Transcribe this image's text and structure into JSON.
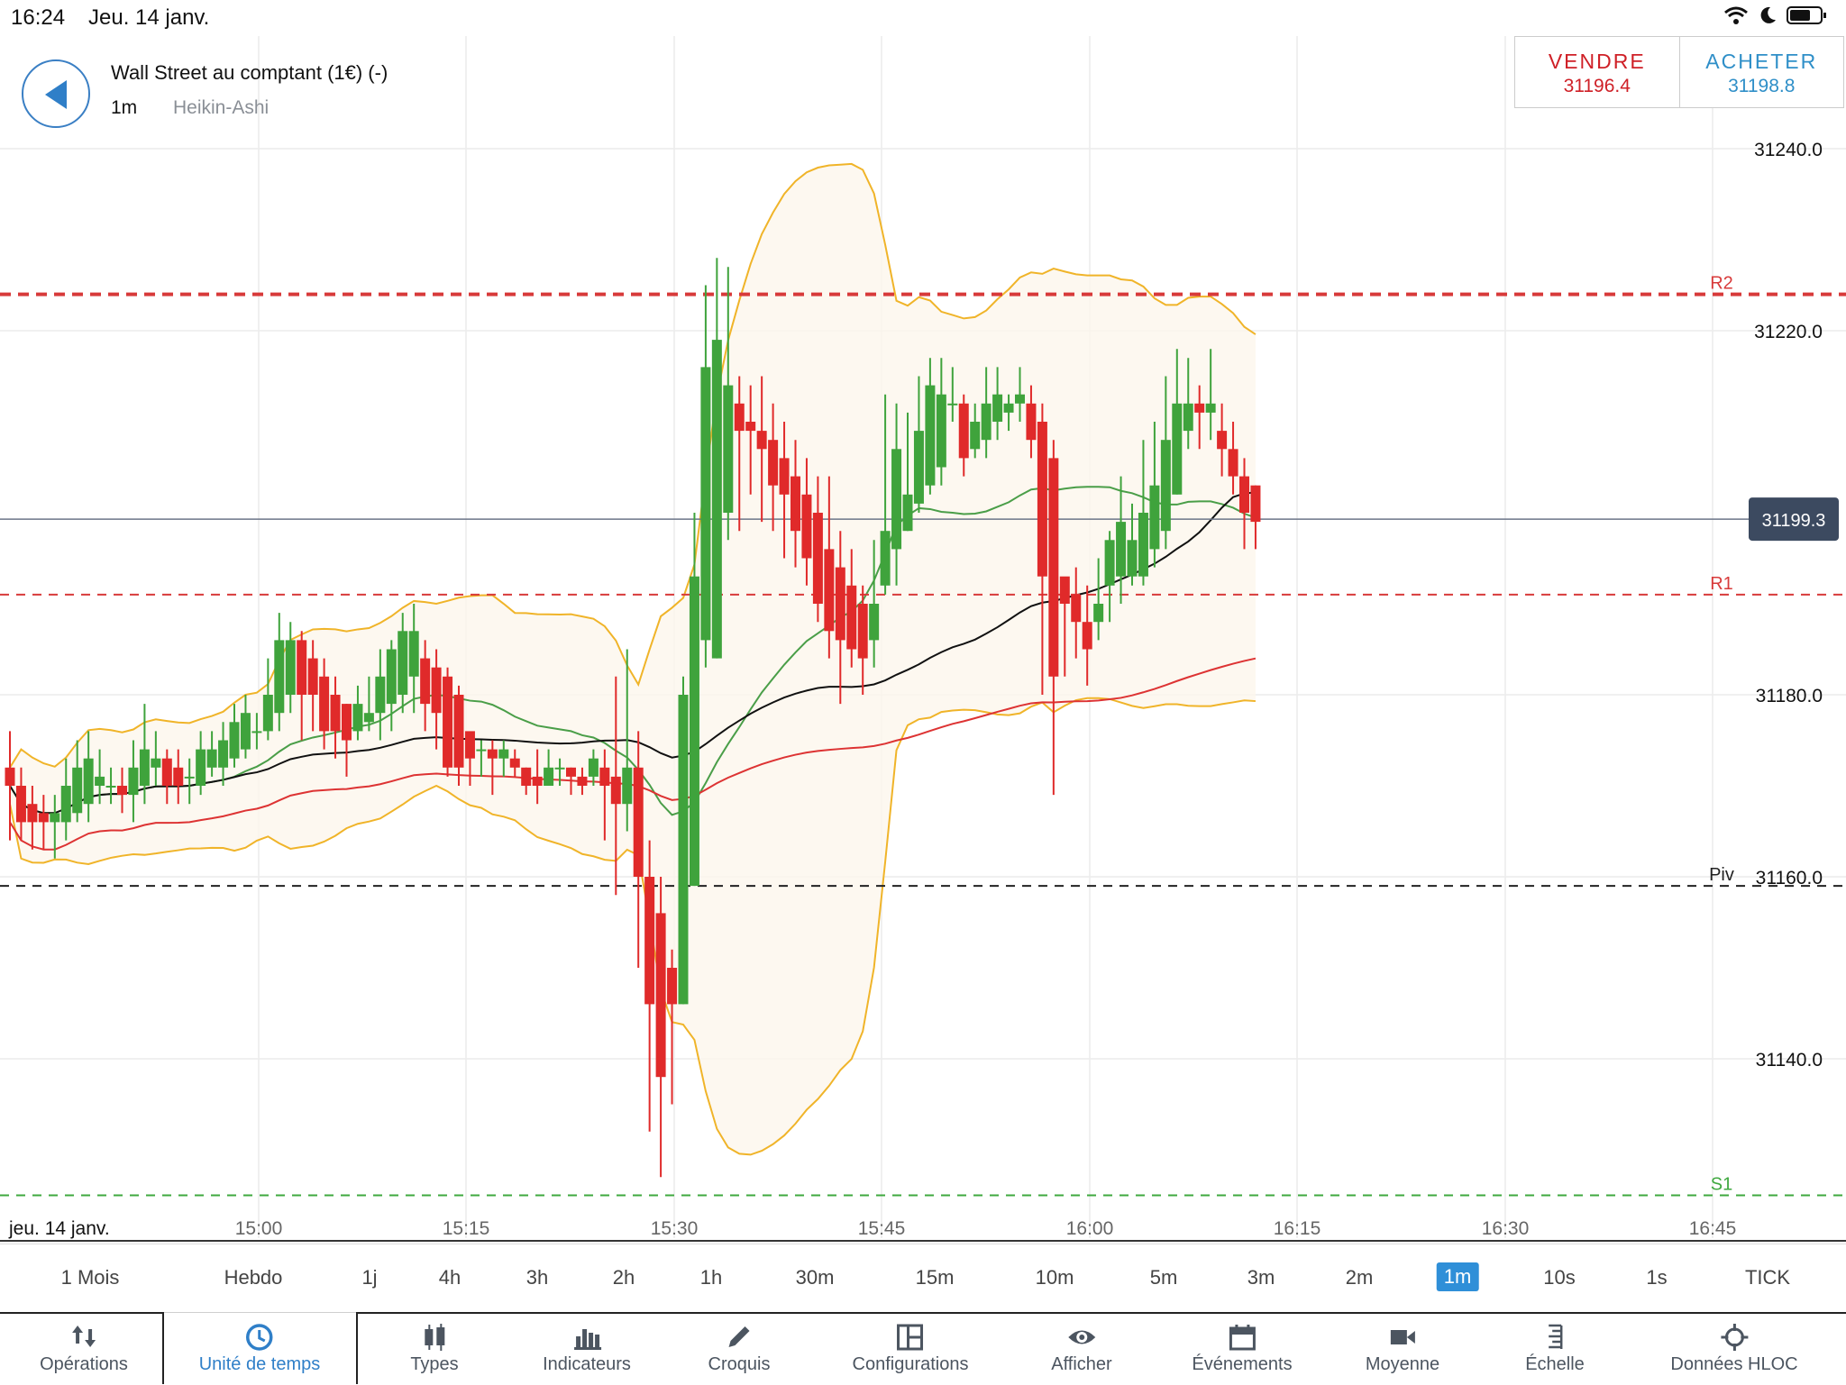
{
  "status_bar": {
    "time": "16:24",
    "date": "Jeu. 14 janv."
  },
  "instrument": {
    "name": "Wall Street au comptant (1€) (-)",
    "timeframe": "1m",
    "chart_type": "Heikin-Ashi"
  },
  "trade": {
    "sell_label": "VENDRE",
    "sell_price": "31196.4",
    "buy_label": "ACHETER",
    "buy_price": "31198.8"
  },
  "colors": {
    "up": "#3fa33c",
    "down": "#e02a2a",
    "bollinger": "#f0b429",
    "r_level": "#d83a3a",
    "s_level": "#3fa83f",
    "price_tag": "#3c4a60"
  },
  "chart_data": {
    "type": "candlestick",
    "style": "Heikin-Ashi",
    "date_label": "jeu. 14 janv.",
    "y_ticks": [
      "31240.0",
      "31220.0",
      "31180.0",
      "31160.0",
      "31140.0"
    ],
    "x_ticks": [
      "15:00",
      "15:15",
      "15:30",
      "15:45",
      "16:00",
      "16:15",
      "16:30",
      "16:45"
    ],
    "levels": [
      {
        "name": "R2",
        "value": 31224
      },
      {
        "name": "R1",
        "value": 31191
      },
      {
        "name": "Piv",
        "value": 31159
      },
      {
        "name": "S1",
        "value": 31125
      }
    ],
    "current_price": "31199.3",
    "candles": [
      [
        31172,
        31170,
        31176,
        31164
      ],
      [
        31170,
        31166,
        31172,
        31164
      ],
      [
        31168,
        31166,
        31170,
        31163
      ],
      [
        31167,
        31166,
        31169,
        31163
      ],
      [
        31166,
        31167,
        31169,
        31162
      ],
      [
        31166,
        31170,
        31173,
        31164
      ],
      [
        31167,
        31172,
        31175,
        31166
      ],
      [
        31168,
        31173,
        31176,
        31166
      ],
      [
        31170,
        31171,
        31174,
        31168
      ],
      [
        31170,
        31170,
        31172,
        31168
      ],
      [
        31170,
        31169,
        31172,
        31167
      ],
      [
        31169,
        31172,
        31175,
        31166
      ],
      [
        31170,
        31174,
        31179,
        31168
      ],
      [
        31172,
        31173,
        31176,
        31170
      ],
      [
        31173,
        31170,
        31174,
        31168
      ],
      [
        31172,
        31170,
        31174,
        31168
      ],
      [
        31171,
        31171,
        31173,
        31168
      ],
      [
        31170,
        31174,
        31176,
        31169
      ],
      [
        31172,
        31174,
        31176,
        31171
      ],
      [
        31172,
        31175,
        31177,
        31170
      ],
      [
        31173,
        31177,
        31179,
        31172
      ],
      [
        31174,
        31178,
        31180,
        31173
      ],
      [
        31176,
        31176,
        31178,
        31174
      ],
      [
        31176,
        31180,
        31184,
        31175
      ],
      [
        31178,
        31186,
        31189,
        31176
      ],
      [
        31180,
        31186,
        31188,
        31178
      ],
      [
        31186,
        31180,
        31187,
        31175
      ],
      [
        31184,
        31180,
        31186,
        31176
      ],
      [
        31182,
        31176,
        31184,
        31174
      ],
      [
        31180,
        31176,
        31182,
        31173
      ],
      [
        31179,
        31175,
        31179,
        31171
      ],
      [
        31176,
        31179,
        31181,
        31175
      ],
      [
        31177,
        31178,
        31182,
        31176
      ],
      [
        31178,
        31182,
        31185,
        31175
      ],
      [
        31179,
        31185,
        31186,
        31176
      ],
      [
        31180,
        31187,
        31189,
        31178
      ],
      [
        31182,
        31187,
        31190,
        31178
      ],
      [
        31184,
        31179,
        31186,
        31176
      ],
      [
        31183,
        31178,
        31185,
        31174
      ],
      [
        31182,
        31172,
        31183,
        31171
      ],
      [
        31180,
        31172,
        31181,
        31170
      ],
      [
        31176,
        31173,
        31174,
        31170
      ],
      [
        31174,
        31174,
        31175,
        31171
      ],
      [
        31174,
        31173,
        31175,
        31169
      ],
      [
        31173,
        31174,
        31175,
        31171
      ],
      [
        31173,
        31172,
        31174,
        31171
      ],
      [
        31172,
        31170,
        31172,
        31169
      ],
      [
        31171,
        31170,
        31174,
        31168
      ],
      [
        31170,
        31172,
        31174,
        31170
      ],
      [
        31172,
        31172,
        31173,
        31170
      ],
      [
        31172,
        31171,
        31172,
        31169
      ],
      [
        31171,
        31170,
        31172,
        31169
      ],
      [
        31171,
        31173,
        31174,
        31170
      ],
      [
        31172,
        31170,
        31174,
        31164
      ],
      [
        31171,
        31168,
        31182,
        31158
      ],
      [
        31168,
        31172,
        31185,
        31165
      ],
      [
        31172,
        31160,
        31176,
        31150
      ],
      [
        31160,
        31146,
        31164,
        31132
      ],
      [
        31156,
        31138,
        31160,
        31127
      ],
      [
        31150,
        31146,
        31152,
        31135
      ],
      [
        31146,
        31180,
        31182,
        31146
      ],
      [
        31159,
        31193,
        31200,
        31159
      ],
      [
        31186,
        31216,
        31225,
        31183
      ],
      [
        31184,
        31219,
        31228,
        31184
      ],
      [
        31200,
        31214,
        31227,
        31197
      ],
      [
        31212,
        31209,
        31215,
        31198
      ],
      [
        31210,
        31209,
        31214,
        31202
      ],
      [
        31209,
        31207,
        31215,
        31199
      ],
      [
        31208,
        31203,
        31212,
        31198
      ],
      [
        31206,
        31202,
        31210,
        31195
      ],
      [
        31204,
        31198,
        31208,
        31194
      ],
      [
        31202,
        31195,
        31206,
        31192
      ],
      [
        31200,
        31190,
        31204,
        31188
      ],
      [
        31196,
        31187,
        31204,
        31184
      ],
      [
        31194,
        31186,
        31198,
        31179
      ],
      [
        31192,
        31185,
        31196,
        31183
      ],
      [
        31190,
        31184,
        31192,
        31180
      ],
      [
        31186,
        31190,
        31197,
        31183
      ],
      [
        31192,
        31198,
        31213,
        31191
      ],
      [
        31196,
        31207,
        31212,
        31192
      ],
      [
        31198,
        31202,
        31211,
        31198
      ],
      [
        31201,
        31209,
        31215,
        31200
      ],
      [
        31203,
        31214,
        31217,
        31202
      ],
      [
        31205,
        31213,
        31217,
        31203
      ],
      [
        31212,
        31212,
        31216,
        31210
      ],
      [
        31212,
        31206,
        31213,
        31204
      ],
      [
        31207,
        31210,
        31212,
        31206
      ],
      [
        31208,
        31212,
        31216,
        31206
      ],
      [
        31210,
        31213,
        31216,
        31208
      ],
      [
        31211,
        31212,
        31213,
        31209
      ],
      [
        31212,
        31213,
        31216,
        31210
      ],
      [
        31212,
        31208,
        31214,
        31206
      ],
      [
        31210,
        31193,
        31212,
        31180
      ],
      [
        31206,
        31182,
        31208,
        31169
      ],
      [
        31193,
        31190,
        31192,
        31182
      ],
      [
        31191,
        31188,
        31194,
        31184
      ],
      [
        31188,
        31185,
        31192,
        31181
      ],
      [
        31188,
        31190,
        31195,
        31186
      ],
      [
        31192,
        31197,
        31198,
        31188
      ],
      [
        31193,
        31199,
        31204,
        31190
      ],
      [
        31193,
        31197,
        31201,
        31192
      ],
      [
        31193,
        31200,
        31208,
        31192
      ],
      [
        31196,
        31203,
        31210,
        31194
      ],
      [
        31198,
        31208,
        31215,
        31196
      ],
      [
        31202,
        31212,
        31218,
        31202
      ],
      [
        31209,
        31212,
        31217,
        31207
      ],
      [
        31212,
        31211,
        31214,
        31207
      ],
      [
        31211,
        31212,
        31218,
        31208
      ],
      [
        31209,
        31207,
        31212,
        31204
      ],
      [
        31207,
        31204,
        31210,
        31202
      ],
      [
        31204,
        31200,
        31206,
        31196
      ],
      [
        31203,
        31199,
        31203,
        31196
      ]
    ]
  },
  "timeframes": [
    "1 Mois",
    "Hebdo",
    "1j",
    "4h",
    "3h",
    "2h",
    "1h",
    "30m",
    "15m",
    "10m",
    "5m",
    "3m",
    "2m",
    "1m",
    "10s",
    "1s",
    "TICK"
  ],
  "active_timeframe": "1m",
  "toolbar": [
    {
      "label": "Opérations",
      "icon": "arrows-updown-icon"
    },
    {
      "label": "Unité de temps",
      "icon": "clock-icon"
    },
    {
      "label": "Types",
      "icon": "candlestick-icon"
    },
    {
      "label": "Indicateurs",
      "icon": "bar-chart-icon"
    },
    {
      "label": "Croquis",
      "icon": "pencil-icon"
    },
    {
      "label": "Configurations",
      "icon": "layout-icon"
    },
    {
      "label": "Afficher",
      "icon": "eye-icon"
    },
    {
      "label": "Événements",
      "icon": "calendar-icon"
    },
    {
      "label": "Moyenne",
      "icon": "camera-icon"
    },
    {
      "label": "Échelle",
      "icon": "scale-icon"
    },
    {
      "label": "Données HLOC",
      "icon": "crosshair-icon"
    }
  ]
}
